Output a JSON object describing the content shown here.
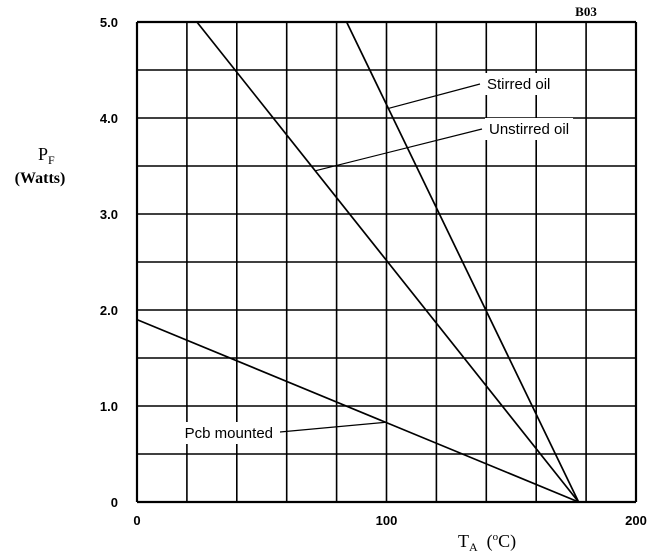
{
  "chart_data": {
    "type": "line",
    "corner_label": "B03",
    "ylabel_main": "P",
    "ylabel_sub": "F",
    "ylabel_unit": "(Watts)",
    "xlabel_main": "T",
    "xlabel_sub": "A",
    "xlabel_unit_open": "(",
    "xlabel_unit_sup": "o",
    "xlabel_unit_close": "C)",
    "xlim": [
      0,
      200
    ],
    "ylim": [
      0,
      5.0
    ],
    "grid": true,
    "x_ticks": [
      "0",
      "100",
      "200"
    ],
    "y_ticks": [
      "0",
      "1.0",
      "2.0",
      "3.0",
      "4.0",
      "5.0"
    ],
    "series": [
      {
        "name": "Stirred oil",
        "x": [
          84,
          177
        ],
        "y": [
          5.0,
          0
        ]
      },
      {
        "name": "Unstirred oil",
        "x": [
          24,
          177
        ],
        "y": [
          5.0,
          0
        ]
      },
      {
        "name": "Pcb mounted",
        "x": [
          0,
          177
        ],
        "y": [
          1.9,
          0
        ]
      }
    ]
  }
}
